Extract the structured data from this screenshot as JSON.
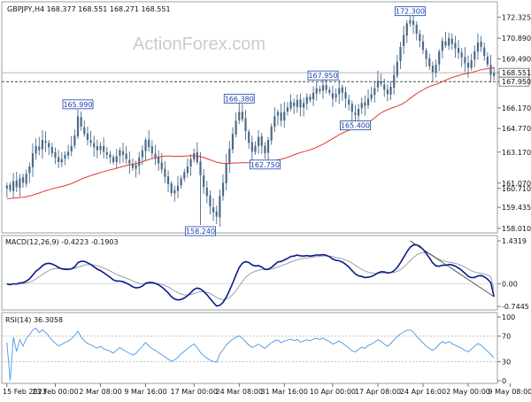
{
  "header": {
    "symbol_line": "GBPJPY,H4  168.377 168.551 168.271 168.551",
    "watermark": "ActionForex.com"
  },
  "chart_data": [
    {
      "type": "candlestick",
      "title": "GBPJPY,H4",
      "ohlc_last": {
        "open": 168.377,
        "high": 168.551,
        "low": 168.271,
        "close": 168.551
      },
      "ylim": [
        158.0,
        173.0
      ],
      "y_ticks": [
        "172.325",
        "170.890",
        "169.490",
        "168.551",
        "167.950",
        "166.170",
        "164.770",
        "163.170",
        "161.070",
        "160.710",
        "159.435",
        "158.010"
      ],
      "y_tick_values": [
        172.325,
        170.89,
        169.49,
        168.551,
        167.95,
        166.17,
        164.77,
        163.17,
        161.07,
        160.71,
        159.435,
        158.01
      ],
      "current_price": 168.551,
      "horizontal_level": 167.95,
      "annotations": [
        {
          "label": "165.990",
          "value": 165.99,
          "idx": 22
        },
        {
          "label": "158.240",
          "value": 158.24,
          "idx": 60
        },
        {
          "label": "166.380",
          "value": 166.38,
          "idx": 72
        },
        {
          "label": "162.750",
          "value": 162.75,
          "idx": 80
        },
        {
          "label": "167.950",
          "value": 167.95,
          "idx": 98
        },
        {
          "label": "165.400",
          "value": 165.4,
          "idx": 108
        },
        {
          "label": "172.300",
          "value": 172.3,
          "idx": 125
        }
      ],
      "close": [
        160.9,
        160.6,
        161.2,
        160.8,
        161.4,
        161.1,
        161.7,
        162.2,
        163.1,
        163.6,
        163.3,
        164.0,
        163.8,
        163.5,
        163.1,
        162.8,
        162.5,
        162.7,
        163.0,
        163.2,
        163.6,
        164.3,
        165.6,
        164.9,
        164.4,
        164.0,
        163.8,
        163.5,
        163.3,
        163.6,
        163.2,
        163.0,
        162.8,
        162.5,
        162.9,
        163.3,
        163.0,
        162.7,
        162.4,
        162.1,
        162.3,
        162.8,
        163.3,
        164.0,
        163.5,
        163.1,
        162.8,
        162.4,
        162.0,
        161.5,
        161.0,
        160.4,
        160.6,
        160.9,
        161.4,
        161.8,
        162.2,
        162.7,
        163.1,
        162.5,
        161.6,
        160.8,
        160.2,
        159.5,
        159.1,
        158.8,
        160.2,
        161.1,
        162.4,
        163.4,
        164.4,
        165.3,
        165.9,
        165.4,
        164.6,
        163.8,
        163.2,
        163.6,
        164.2,
        163.6,
        163.1,
        164.0,
        164.9,
        165.6,
        165.9,
        165.3,
        165.9,
        166.2,
        166.6,
        166.3,
        166.7,
        166.2,
        166.5,
        166.9,
        166.7,
        167.2,
        167.5,
        167.3,
        167.7,
        167.4,
        167.2,
        166.8,
        167.1,
        167.5,
        167.2,
        166.8,
        166.4,
        165.9,
        165.7,
        166.1,
        166.5,
        166.3,
        166.8,
        167.1,
        167.5,
        168.0,
        167.8,
        167.4,
        167.1,
        167.6,
        168.4,
        169.3,
        170.3,
        171.1,
        171.9,
        172.1,
        171.8,
        171.2,
        170.7,
        170.1,
        169.5,
        169.0,
        168.6,
        169.1,
        170.0,
        170.7,
        170.4,
        170.9,
        170.5,
        170.2,
        169.9,
        169.6,
        169.2,
        168.9,
        169.4,
        170.0,
        170.6,
        170.3,
        169.7,
        169.1,
        168.4,
        168.551
      ],
      "ma_period": 50,
      "macd": {
        "label": "MACD(12,26,9) -0.4223 -0.1903",
        "main": -0.4223,
        "signal": -0.1903,
        "ylim": [
          -0.7445,
          1.4319
        ],
        "y_ticks": [
          "1.4319",
          "0.00",
          "-0.7445"
        ],
        "y_tick_values": [
          1.4319,
          0.0,
          -0.7445
        ],
        "trendline_from_idx": 125
      },
      "rsi": {
        "label": "RSI(14) 36.3058",
        "value": 36.3058,
        "ylim": [
          0,
          100
        ],
        "y_ticks": [
          "100",
          "70",
          "30",
          "0"
        ],
        "y_tick_values": [
          100,
          70,
          30,
          0
        ]
      },
      "x_ticks": [
        "15 Feb 2023",
        "23 Feb 00:00",
        "2 Mar 08:00",
        "9 Mar 16:00",
        "17 Mar 00:00",
        "24 Mar 08:00",
        "31 Mar 16:00",
        "10 Apr 00:00",
        "17 Apr 08:00",
        "24 Apr 16:00",
        "2 May 00:00",
        "9 May 08:00"
      ],
      "x_tick_idx": [
        0,
        15,
        29,
        43,
        58,
        72,
        86,
        101,
        115,
        129,
        143,
        156
      ],
      "colors": {
        "candle": "#4a6a88",
        "ma": "#e3342f",
        "macd": "#0a1a8c",
        "signal": "#9aa0a6",
        "rsi": "#5aa0e6",
        "label_fg": "#1a3fa8",
        "label_bg": "#ffffff"
      }
    }
  ]
}
